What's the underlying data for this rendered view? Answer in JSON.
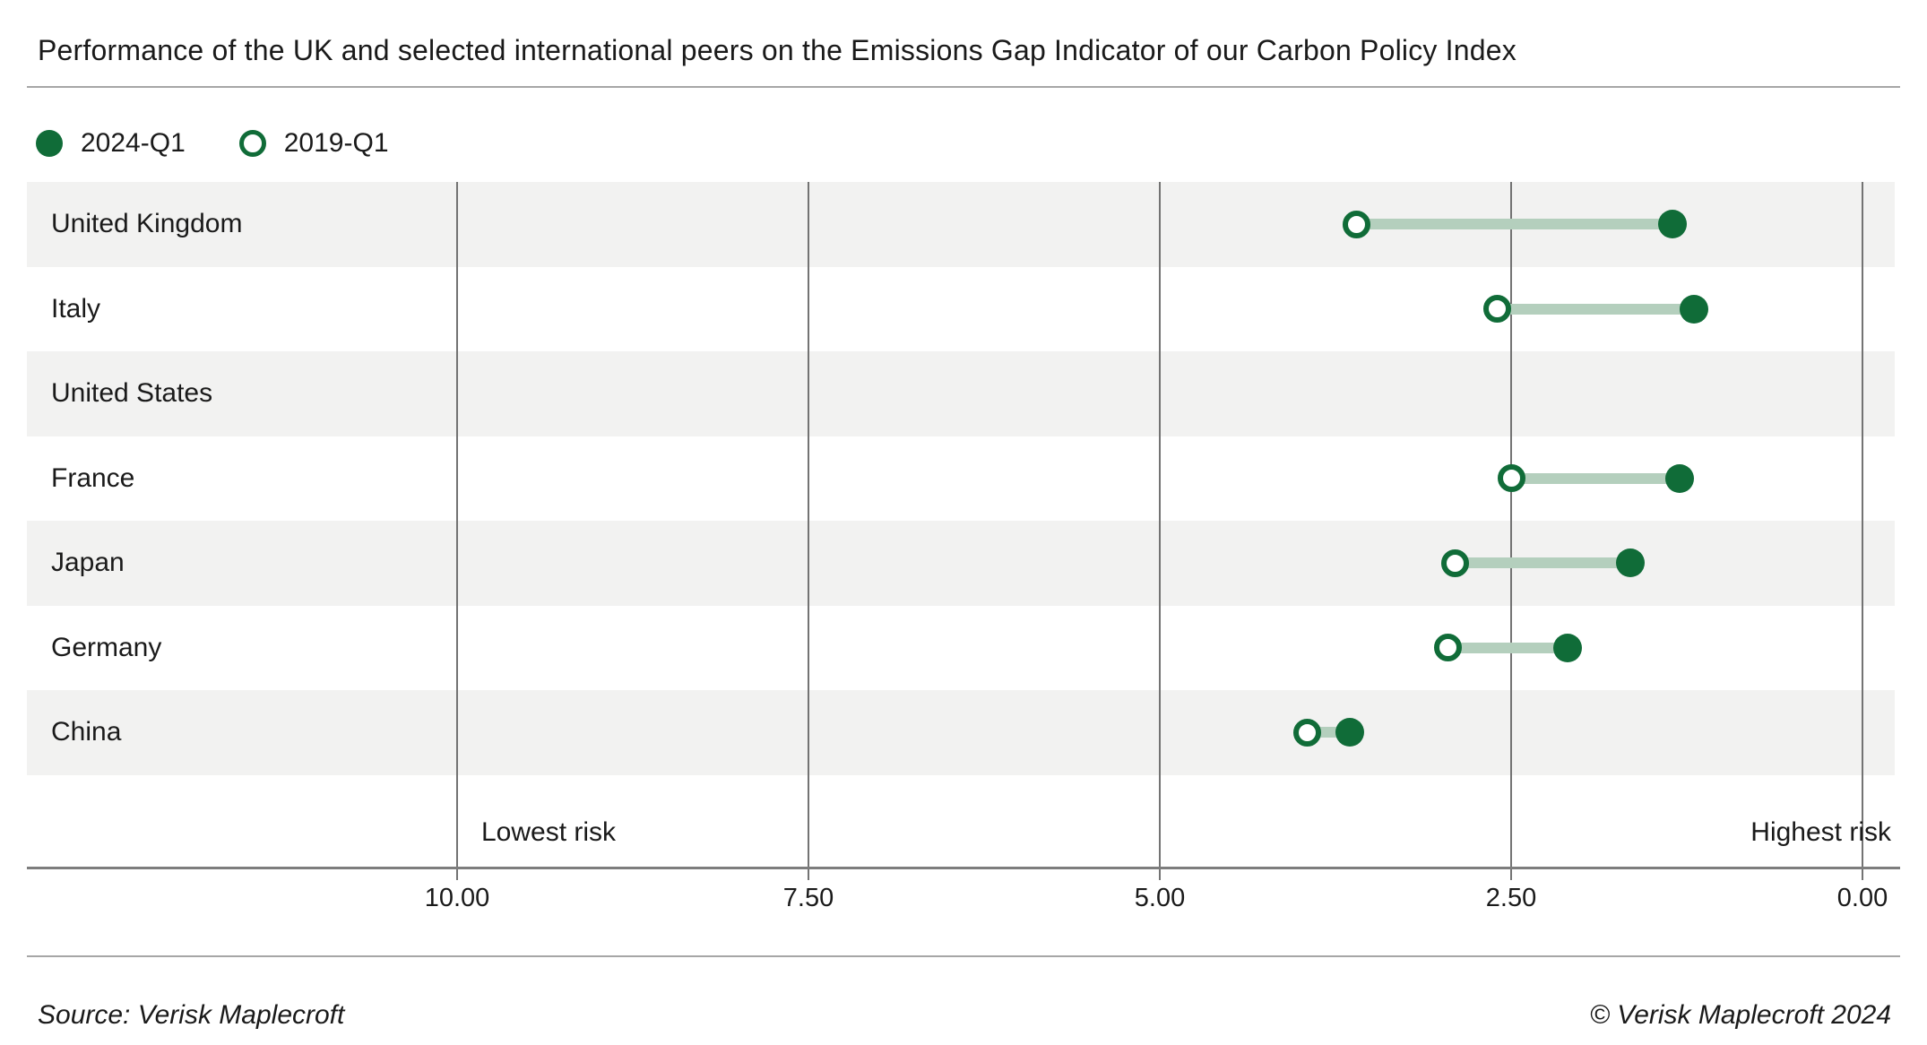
{
  "title": "Performance of the UK and selected international peers on the Emissions Gap Indicator of our Carbon Policy Index",
  "legend": [
    {
      "label": "2024-Q1",
      "marker": "filled-circle"
    },
    {
      "label": "2019-Q1",
      "marker": "hollow-circle"
    }
  ],
  "chart_data": {
    "type": "scatter",
    "variant": "dumbbell",
    "orientation": "horizontal",
    "series": [
      {
        "name": "2024-Q1",
        "marker": "filled"
      },
      {
        "name": "2019-Q1",
        "marker": "hollow"
      }
    ],
    "rows": [
      {
        "country": "United Kingdom",
        "q1_2019": 3.6,
        "q1_2024": 1.35
      },
      {
        "country": "Italy",
        "q1_2019": 2.6,
        "q1_2024": 1.2
      },
      {
        "country": "United States",
        "q1_2019": null,
        "q1_2024": null
      },
      {
        "country": "France",
        "q1_2019": 2.5,
        "q1_2024": 1.3
      },
      {
        "country": "Japan",
        "q1_2019": 2.9,
        "q1_2024": 1.65
      },
      {
        "country": "Germany",
        "q1_2019": 2.95,
        "q1_2024": 2.1
      },
      {
        "country": "China",
        "q1_2019": 3.95,
        "q1_2024": 3.65
      }
    ],
    "x_axis": {
      "reversed": true,
      "range": [
        10,
        0
      ],
      "ticks": [
        {
          "label": "10.00",
          "value": 10
        },
        {
          "label": "7.50",
          "value": 7.5
        },
        {
          "label": "5.00",
          "value": 5
        },
        {
          "label": "2.50",
          "value": 2.5
        },
        {
          "label": "0.00",
          "value": 0
        }
      ]
    },
    "annotations": {
      "lowest": "Lowest risk",
      "highest": "Highest risk"
    },
    "grid": "vertical-only",
    "legend_position": "top-left"
  },
  "footer": {
    "source": "Source: Verisk Maplecroft",
    "copyright": "© Verisk Maplecroft 2024"
  },
  "colors": {
    "marker_green": "#106c38",
    "connector_green": "#b4cfbd",
    "band_gray": "#f2f2f1",
    "gridline_gray": "#737373",
    "text": "#1a1a1a"
  }
}
